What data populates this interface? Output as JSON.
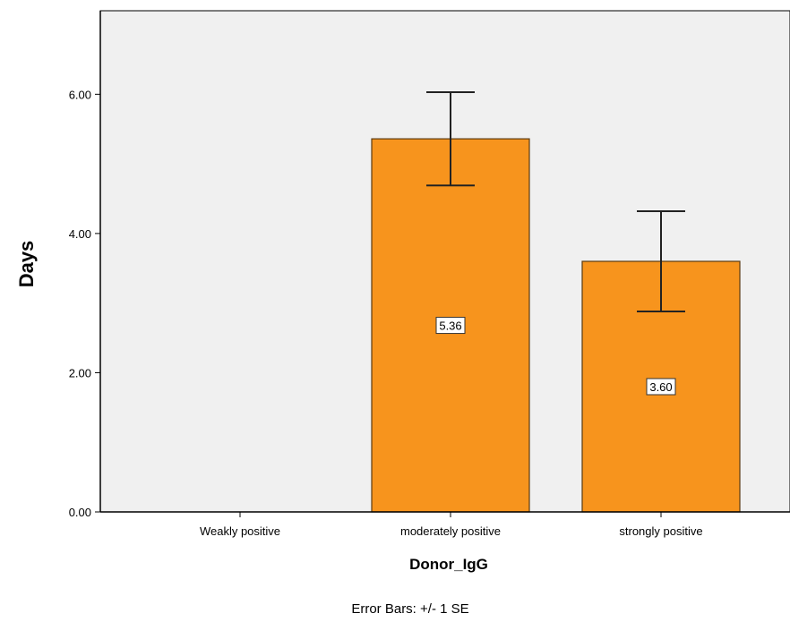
{
  "chart_data": {
    "type": "bar",
    "categories": [
      "Weakly positive",
      "moderately positive",
      "strongly positive"
    ],
    "values": [
      null,
      5.36,
      3.6
    ],
    "value_labels": [
      "",
      "5.36",
      "3.60"
    ],
    "error_bars": {
      "low": [
        null,
        4.69,
        2.88
      ],
      "high": [
        null,
        6.03,
        4.32
      ]
    },
    "xlabel": "Donor_IgG",
    "ylabel": "Days",
    "ylim": [
      0,
      7.2
    ],
    "yticks": [
      0,
      2,
      4,
      6
    ],
    "ytick_labels": [
      "0.00",
      "2.00",
      "4.00",
      "6.00"
    ],
    "footnote": "Error Bars: +/- 1 SE",
    "grid": false,
    "colors": {
      "bar_fill": "#f7941d",
      "bar_stroke": "#5a3a10",
      "plot_background": "#f0f0f0",
      "axis": "#000000",
      "label_box_fill": "#ffffff"
    }
  }
}
